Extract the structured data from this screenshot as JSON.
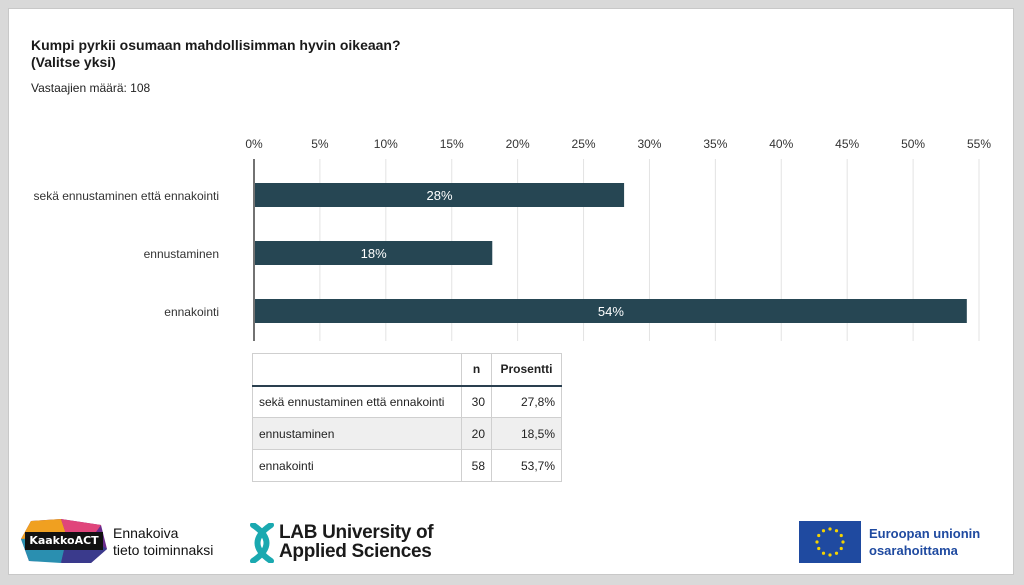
{
  "question": {
    "line1": "Kumpi pyrkii osumaan mahdollisimman hyvin oikeaan?",
    "line2": "(Valitse yksi)"
  },
  "respondents": "Vastaajien määrä: 108",
  "chart_data": {
    "type": "bar",
    "orientation": "horizontal",
    "title": "Kumpi pyrkii osumaan mahdollisimman hyvin oikeaan? (Valitse yksi)",
    "categories": [
      "sekä ennustaminen että ennakointi",
      "ennustaminen",
      "ennakointi"
    ],
    "values": [
      28,
      18,
      54
    ],
    "value_labels": [
      "28%",
      "18%",
      "54%"
    ],
    "xlim": [
      0,
      55
    ],
    "xticks": [
      "0%",
      "5%",
      "10%",
      "15%",
      "20%",
      "25%",
      "30%",
      "35%",
      "40%",
      "45%",
      "50%",
      "55%"
    ],
    "bar_color": "#264653",
    "grid": true,
    "xlabel": "",
    "ylabel": ""
  },
  "table": {
    "headers": [
      "",
      "n",
      "Prosentti"
    ],
    "rows": [
      [
        "sekä ennustaminen että ennakointi",
        "30",
        "27,8%"
      ],
      [
        "ennustaminen",
        "20",
        "18,5%"
      ],
      [
        "ennakointi",
        "58",
        "53,7%"
      ]
    ]
  },
  "footer": {
    "kaakko_badge": "KaakkoACT",
    "kaakko_line1": "Ennakoiva",
    "kaakko_line2": "tieto toiminnaksi",
    "lab_line1": "LAB University of",
    "lab_line2": "Applied Sciences",
    "eu_line1": "Euroopan unionin",
    "eu_line2": "osarahoittama"
  }
}
